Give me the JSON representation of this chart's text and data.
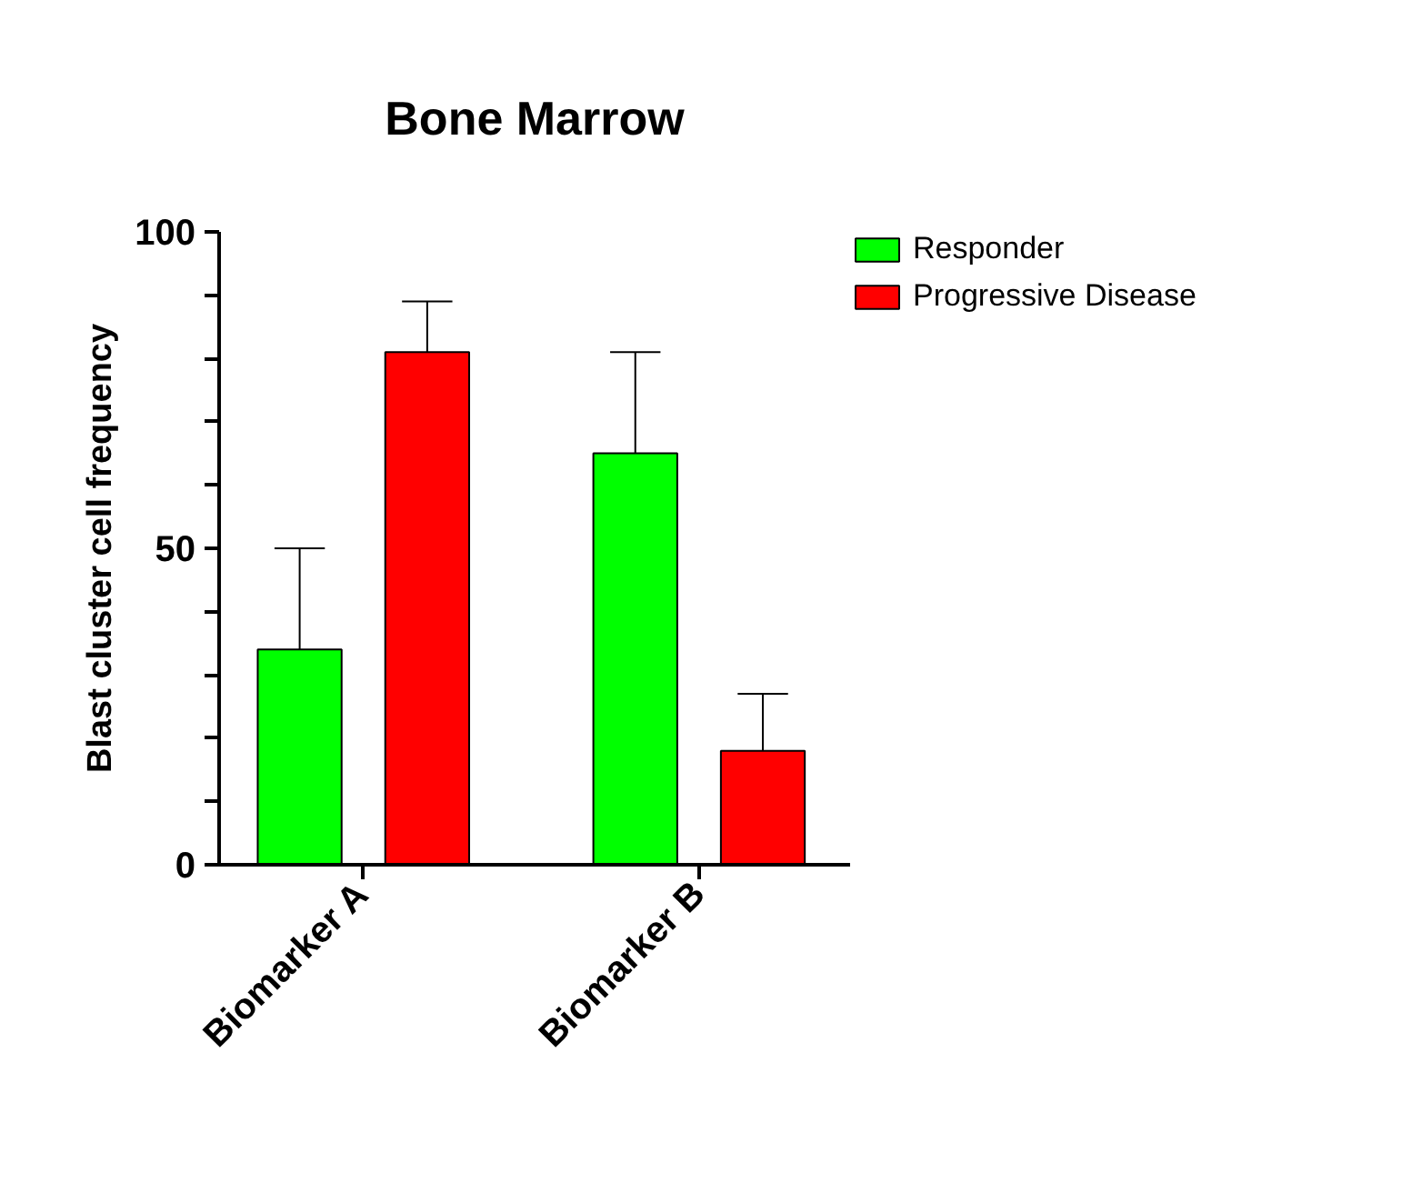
{
  "chart_data": {
    "type": "bar",
    "title": "Bone Marrow",
    "ylabel": "Blast cluster cell frequency",
    "categories": [
      "Biomarker A",
      "Biomarker B"
    ],
    "series": [
      {
        "name": "Responder",
        "color": "#00ff00",
        "values": [
          34,
          65
        ],
        "errors": [
          [
            34,
            50
          ],
          [
            65,
            81
          ]
        ]
      },
      {
        "name": "Progressive Disease",
        "color": "#ff0000",
        "values": [
          81,
          18
        ],
        "errors": [
          [
            81,
            89
          ],
          [
            18,
            27
          ]
        ]
      }
    ],
    "ylim": [
      0,
      100
    ],
    "yticks": [
      0,
      {
        "value": 10,
        "label": null
      },
      {
        "value": 20,
        "label": null
      },
      {
        "value": 30,
        "label": null
      },
      {
        "value": 40,
        "label": null
      },
      50,
      {
        "value": 60,
        "label": null
      },
      {
        "value": 70,
        "label": null
      },
      {
        "value": 80,
        "label": null
      },
      {
        "value": 90,
        "label": null
      },
      100
    ],
    "grid": false,
    "legend": "top right"
  }
}
